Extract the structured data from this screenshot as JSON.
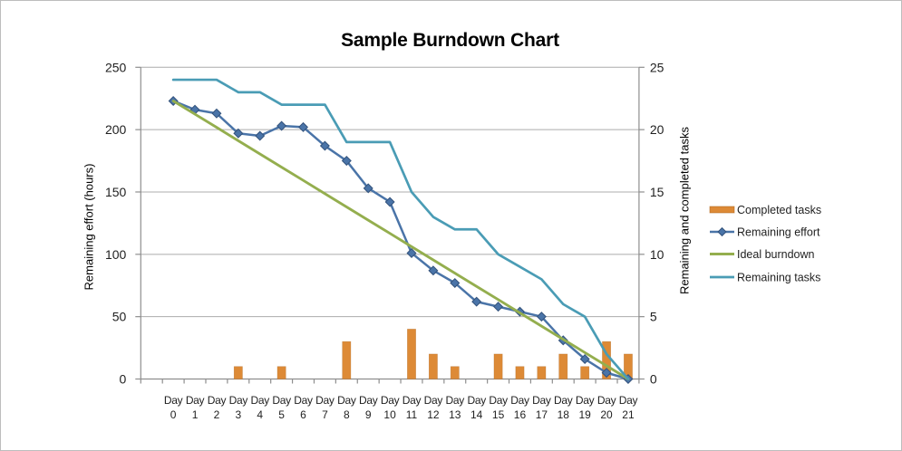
{
  "window": {
    "background": "#ffffff",
    "frame_border_color": "#bdbdbd"
  },
  "chart_data": {
    "type": "combo",
    "title": "Sample Burndown Chart",
    "x_tick_prefix": "Day",
    "categories": [
      "0",
      "1",
      "2",
      "3",
      "4",
      "5",
      "6",
      "7",
      "8",
      "9",
      "10",
      "11",
      "12",
      "13",
      "14",
      "15",
      "16",
      "17",
      "18",
      "19",
      "20",
      "21"
    ],
    "axes": {
      "left": {
        "label": "Remaining effort (hours)",
        "min": 0,
        "max": 250,
        "step": 50,
        "ticks": [
          "0",
          "50",
          "100",
          "150",
          "200",
          "250"
        ]
      },
      "right": {
        "label": "Remaining and completed tasks",
        "min": 0,
        "max": 25,
        "step": 5,
        "ticks": [
          "0",
          "5",
          "10",
          "15",
          "20",
          "25"
        ]
      }
    },
    "grid": true,
    "legend": {
      "position": "right",
      "entries": [
        "Completed tasks",
        "Remaining effort",
        "Ideal burndown",
        "Remaining tasks"
      ]
    },
    "series": [
      {
        "name": "Completed tasks",
        "kind": "bar",
        "axis": "right",
        "color": "#DD8A36",
        "edge_color": "#B06A22",
        "values": [
          0,
          0,
          0,
          1,
          0,
          1,
          0,
          0,
          3,
          0,
          0,
          4,
          2,
          1,
          0,
          2,
          1,
          1,
          2,
          1,
          3,
          2
        ]
      },
      {
        "name": "Remaining effort",
        "kind": "line",
        "marker": "diamond",
        "axis": "left",
        "color": "#4A74A8",
        "marker_edge": "#33527B",
        "values": [
          223,
          216,
          213,
          197,
          195,
          203,
          202,
          187,
          175,
          153,
          142,
          101,
          87,
          77,
          62,
          58,
          54,
          50,
          31,
          16,
          5,
          0
        ]
      },
      {
        "name": "Ideal burndown",
        "kind": "line",
        "axis": "left",
        "color": "#94AE4E",
        "values": [
          223,
          212.4,
          201.8,
          191.1,
          180.5,
          169.9,
          159.3,
          148.6,
          138.0,
          127.4,
          116.8,
          106.1,
          95.5,
          84.9,
          74.3,
          63.7,
          53.0,
          42.4,
          31.8,
          21.2,
          10.6,
          0
        ]
      },
      {
        "name": "Remaining tasks",
        "kind": "line",
        "axis": "right",
        "color": "#4A9CB5",
        "values": [
          24,
          24,
          24,
          23,
          23,
          22,
          22,
          22,
          19,
          19,
          19,
          15,
          13,
          12,
          12,
          10,
          9,
          8,
          6,
          5,
          2,
          0
        ]
      }
    ]
  },
  "styles": {
    "grid_color": "#ACACAC",
    "axis_color": "#8E8E8E",
    "tick_text_color": "#1F1F1F",
    "title_color": "#000000"
  }
}
